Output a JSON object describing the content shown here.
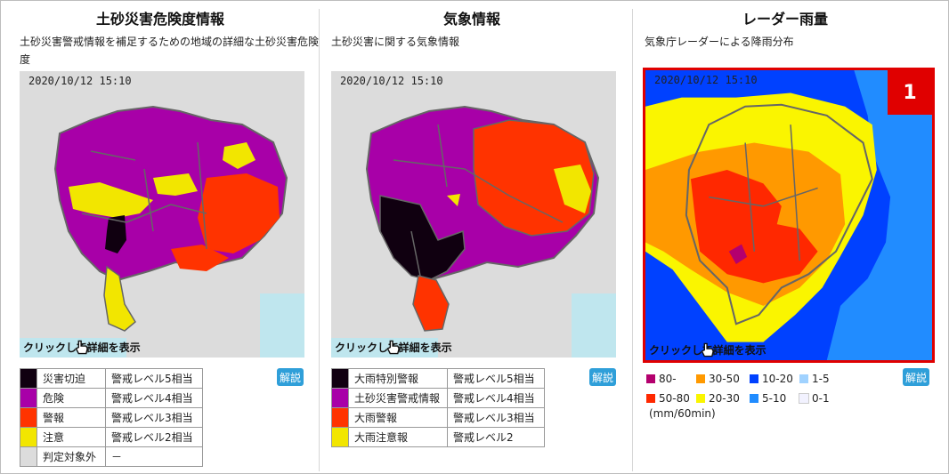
{
  "panels": [
    {
      "title": "土砂災害危険度情報",
      "description": "土砂災害警戒情報を補足するための地域の詳細な土砂災害危険度",
      "timestamp": "2020/10/12 15:10",
      "click_label": "クリックして詳細を表示",
      "explain_label": "解説",
      "legend": [
        {
          "name": "災害切迫",
          "level": "警戒レベル5相当",
          "color": "#100010"
        },
        {
          "name": "危険",
          "level": "警戒レベル4相当",
          "color": "#a800a8"
        },
        {
          "name": "警報",
          "level": "警戒レベル3相当",
          "color": "#ff3300"
        },
        {
          "name": "注意",
          "level": "警戒レベル2相当",
          "color": "#f2e600"
        },
        {
          "name": "判定対象外",
          "level": "－",
          "color": "#dcdcdc"
        }
      ]
    },
    {
      "title": "気象情報",
      "description": "土砂災害に関する気象情報",
      "timestamp": "2020/10/12 15:10",
      "click_label": "クリックして詳細を表示",
      "explain_label": "解説",
      "legend": [
        {
          "name": "大雨特別警報",
          "level": "警戒レベル5相当",
          "color": "#100010"
        },
        {
          "name": "土砂災害警戒情報",
          "level": "警戒レベル4相当",
          "color": "#a800a8"
        },
        {
          "name": "大雨警報",
          "level": "警戒レベル3相当",
          "color": "#ff3300"
        },
        {
          "name": "大雨注意報",
          "level": "警戒レベル2",
          "color": "#f2e600"
        }
      ]
    },
    {
      "title": "レーダー雨量",
      "description": "気象庁レーダーによる降雨分布",
      "timestamp": "2020/10/12 15:10",
      "click_label": "クリックして詳細を表示",
      "explain_label": "解説",
      "badge": "1",
      "unit": "(mm/60min)",
      "legend": [
        {
          "label": "80-",
          "color": "#b4006e"
        },
        {
          "label": "30-50",
          "color": "#ff9900"
        },
        {
          "label": "10-20",
          "color": "#0041ff"
        },
        {
          "label": "1-5",
          "color": "#a0d2ff"
        },
        {
          "label": "50-80",
          "color": "#ff2800"
        },
        {
          "label": "20-30",
          "color": "#faf500"
        },
        {
          "label": "5-10",
          "color": "#218cff"
        },
        {
          "label": "0-1",
          "color": "#f2f2ff"
        }
      ]
    }
  ]
}
